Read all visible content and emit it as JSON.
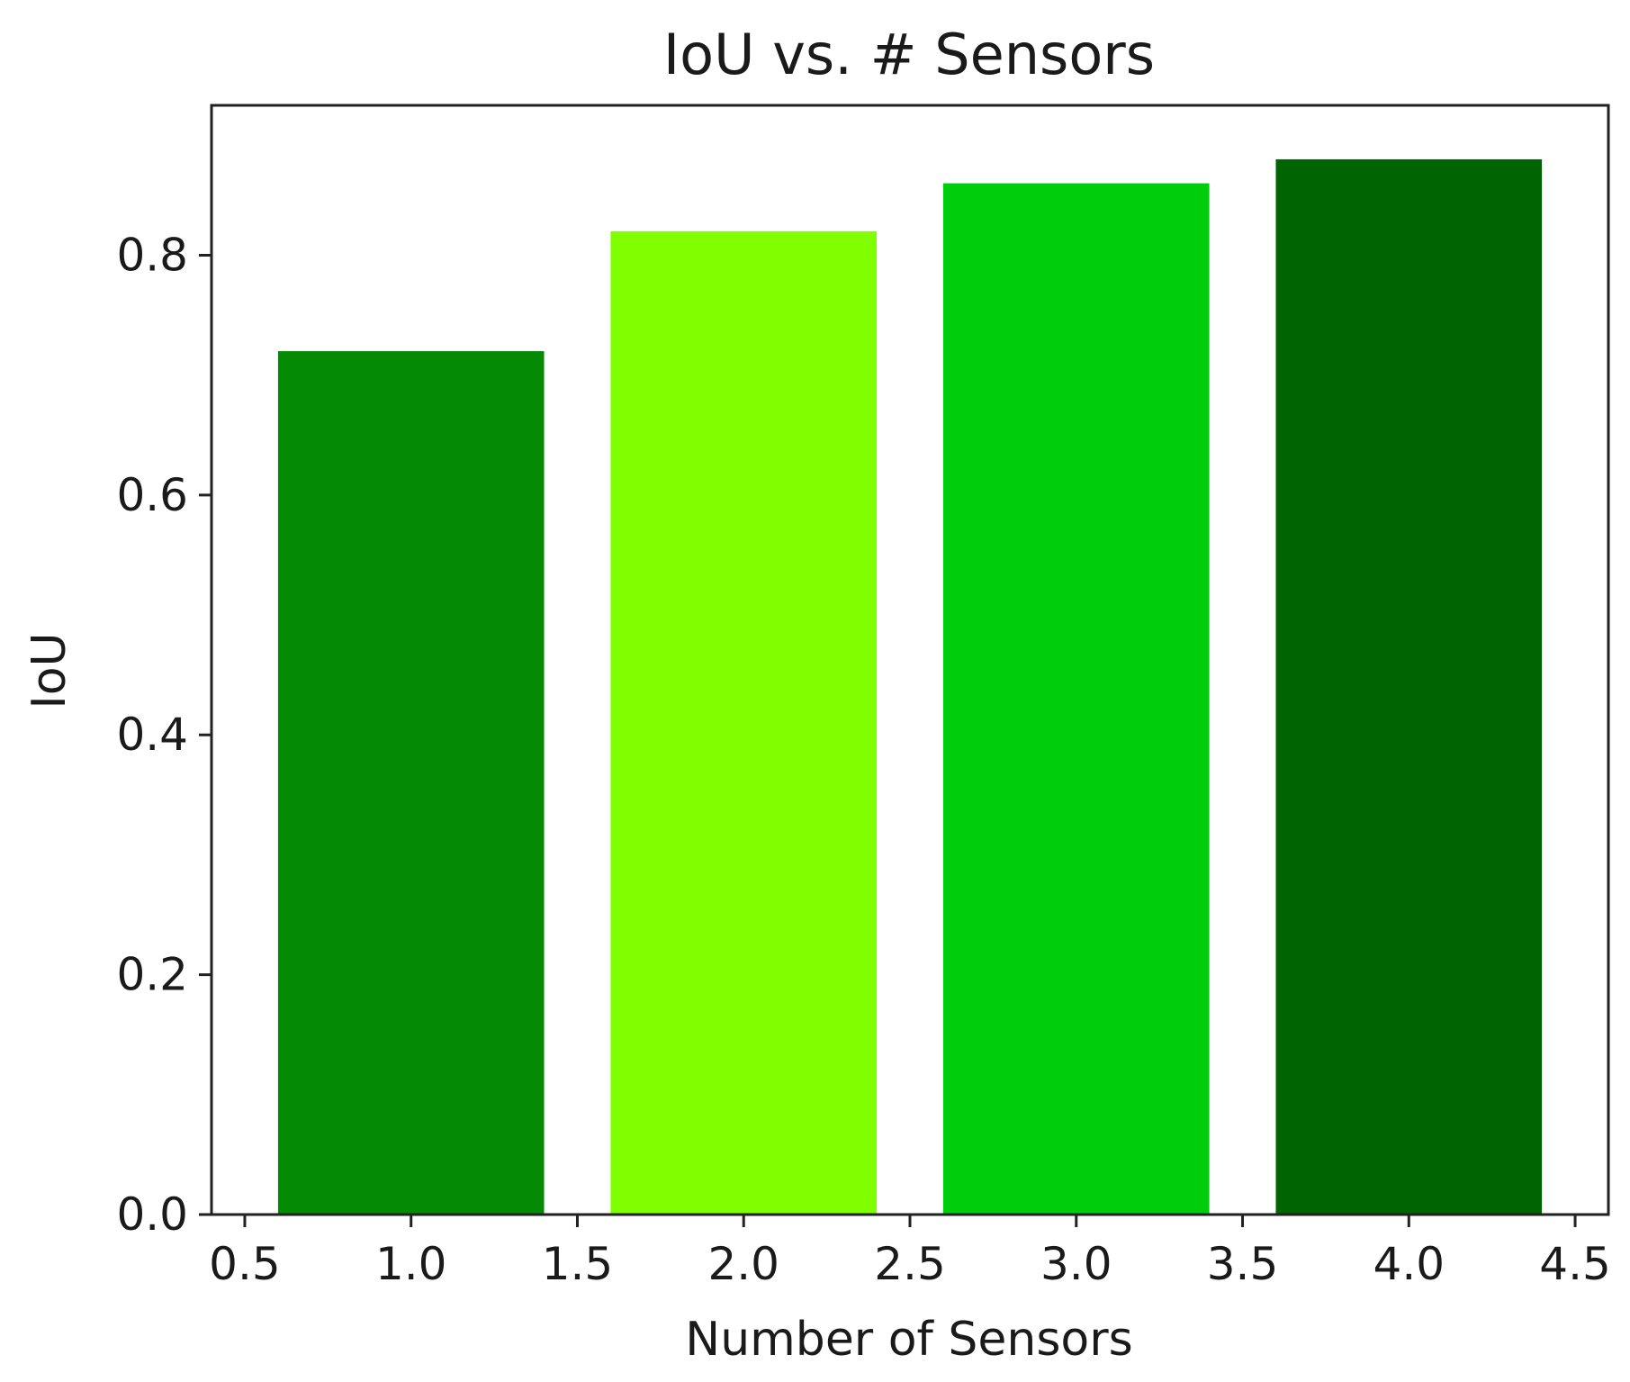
{
  "chart_data": {
    "type": "bar",
    "title": "IoU vs. # Sensors",
    "xlabel": "Number of Sensors",
    "ylabel": "IoU",
    "x": [
      1,
      2,
      3,
      4
    ],
    "values": [
      0.72,
      0.82,
      0.86,
      0.88
    ],
    "bar_width": 0.8,
    "colors": [
      "#058a05",
      "#7fff00",
      "#00cd0c",
      "#016402"
    ],
    "xlim": [
      0.4,
      4.6
    ],
    "ylim": [
      0,
      0.925
    ],
    "x_ticks": [
      0.5,
      1.0,
      1.5,
      2.0,
      2.5,
      3.0,
      3.5,
      4.0,
      4.5
    ],
    "x_tick_labels": [
      "0.5",
      "1.0",
      "1.5",
      "2.0",
      "2.5",
      "3.0",
      "3.5",
      "4.0",
      "4.5"
    ],
    "y_ticks": [
      0.0,
      0.2,
      0.4,
      0.6,
      0.8
    ],
    "y_tick_labels": [
      "0.0",
      "0.2",
      "0.4",
      "0.6",
      "0.8"
    ],
    "grid": false,
    "legend": "none"
  }
}
